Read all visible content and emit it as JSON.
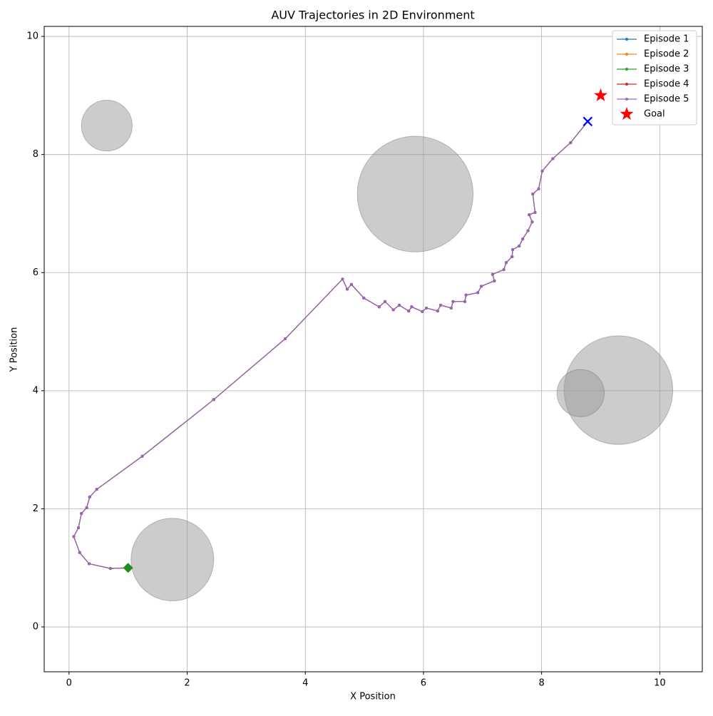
{
  "chart_data": {
    "type": "trajectory",
    "title": "AUV Trajectories in 2D Environment",
    "x_label": "X Position",
    "y_label": "Y Position",
    "xlim": [
      -0.42,
      10.72
    ],
    "ylim": [
      -0.76,
      10.17
    ],
    "xticks": [
      0,
      2,
      4,
      6,
      8,
      10
    ],
    "yticks": [
      0,
      2,
      4,
      6,
      8,
      10
    ],
    "grid": true,
    "legend": "upper right",
    "obstacles": [
      {
        "x": 0.64,
        "y": 8.49,
        "radius": 0.43
      },
      {
        "x": 5.86,
        "y": 7.33,
        "radius": 0.98
      },
      {
        "x": 9.3,
        "y": 4.01,
        "radius": 0.92
      },
      {
        "x": 8.66,
        "y": 3.96,
        "radius": 0.4
      },
      {
        "x": 1.75,
        "y": 1.14,
        "radius": 0.7
      }
    ],
    "obstacle_color": "#999999",
    "series": [
      {
        "name": "Episode 1",
        "color": "#1f77b4",
        "x": [
          1.0,
          0.7,
          0.34,
          0.18,
          0.08,
          0.16,
          0.21,
          0.3,
          0.35,
          0.47,
          1.24,
          2.45,
          3.66,
          4.63,
          4.71,
          4.78,
          4.99,
          5.25,
          5.35,
          5.49,
          5.59,
          5.75,
          5.8,
          5.98,
          6.05,
          6.24,
          6.29,
          6.47,
          6.5,
          6.7,
          6.72,
          6.92,
          6.98,
          7.2,
          7.17,
          7.36,
          7.4,
          7.5,
          7.51,
          7.62,
          7.68,
          7.77,
          7.84,
          7.79,
          7.89,
          7.85,
          7.95,
          8.01,
          8.19,
          8.49,
          8.78
        ],
        "y": [
          1.0,
          0.99,
          1.07,
          1.26,
          1.53,
          1.68,
          1.92,
          2.02,
          2.2,
          2.33,
          2.89,
          3.85,
          4.88,
          5.89,
          5.72,
          5.8,
          5.57,
          5.42,
          5.51,
          5.37,
          5.45,
          5.35,
          5.42,
          5.34,
          5.4,
          5.35,
          5.45,
          5.4,
          5.51,
          5.51,
          5.62,
          5.66,
          5.77,
          5.86,
          5.97,
          6.05,
          6.17,
          6.27,
          6.39,
          6.45,
          6.57,
          6.71,
          6.86,
          6.98,
          7.02,
          7.33,
          7.42,
          7.72,
          7.93,
          8.2,
          8.56
        ]
      },
      {
        "name": "Episode 2",
        "color": "#ff7f0e",
        "x": [
          1.0,
          0.7,
          0.34,
          0.18,
          0.08,
          0.16,
          0.21,
          0.3,
          0.35,
          0.47,
          1.24,
          2.45,
          3.66,
          4.63,
          4.71,
          4.78,
          4.99,
          5.25,
          5.35,
          5.49,
          5.59,
          5.75,
          5.8,
          5.98,
          6.05,
          6.24,
          6.29,
          6.47,
          6.5,
          6.7,
          6.72,
          6.92,
          6.98,
          7.2,
          7.17,
          7.36,
          7.4,
          7.5,
          7.51,
          7.62,
          7.68,
          7.77,
          7.84,
          7.79,
          7.89,
          7.85,
          7.95,
          8.01,
          8.19,
          8.49,
          8.78
        ],
        "y": [
          1.0,
          0.99,
          1.07,
          1.26,
          1.53,
          1.68,
          1.92,
          2.02,
          2.2,
          2.33,
          2.89,
          3.85,
          4.88,
          5.89,
          5.72,
          5.8,
          5.57,
          5.42,
          5.51,
          5.37,
          5.45,
          5.35,
          5.42,
          5.34,
          5.4,
          5.35,
          5.45,
          5.4,
          5.51,
          5.51,
          5.62,
          5.66,
          5.77,
          5.86,
          5.97,
          6.05,
          6.17,
          6.27,
          6.39,
          6.45,
          6.57,
          6.71,
          6.86,
          6.98,
          7.02,
          7.33,
          7.42,
          7.72,
          7.93,
          8.2,
          8.56
        ]
      },
      {
        "name": "Episode 3",
        "color": "#2ca02c",
        "x": [
          1.0,
          0.7,
          0.34,
          0.18,
          0.08,
          0.16,
          0.21,
          0.3,
          0.35,
          0.47,
          1.24,
          2.45,
          3.66,
          4.63,
          4.71,
          4.78,
          4.99,
          5.25,
          5.35,
          5.49,
          5.59,
          5.75,
          5.8,
          5.98,
          6.05,
          6.24,
          6.29,
          6.47,
          6.5,
          6.7,
          6.72,
          6.92,
          6.98,
          7.2,
          7.17,
          7.36,
          7.4,
          7.5,
          7.51,
          7.62,
          7.68,
          7.77,
          7.84,
          7.79,
          7.89,
          7.85,
          7.95,
          8.01,
          8.19,
          8.49,
          8.78
        ],
        "y": [
          1.0,
          0.99,
          1.07,
          1.26,
          1.53,
          1.68,
          1.92,
          2.02,
          2.2,
          2.33,
          2.89,
          3.85,
          4.88,
          5.89,
          5.72,
          5.8,
          5.57,
          5.42,
          5.51,
          5.37,
          5.45,
          5.35,
          5.42,
          5.34,
          5.4,
          5.35,
          5.45,
          5.4,
          5.51,
          5.51,
          5.62,
          5.66,
          5.77,
          5.86,
          5.97,
          6.05,
          6.17,
          6.27,
          6.39,
          6.45,
          6.57,
          6.71,
          6.86,
          6.98,
          7.02,
          7.33,
          7.42,
          7.72,
          7.93,
          8.2,
          8.56
        ]
      },
      {
        "name": "Episode 4",
        "color": "#d62728",
        "x": [
          1.0,
          0.7,
          0.34,
          0.18,
          0.08,
          0.16,
          0.21,
          0.3,
          0.35,
          0.47,
          1.24,
          2.45,
          3.66,
          4.63,
          4.71,
          4.78,
          4.99,
          5.25,
          5.35,
          5.49,
          5.59,
          5.75,
          5.8,
          5.98,
          6.05,
          6.24,
          6.29,
          6.47,
          6.5,
          6.7,
          6.72,
          6.92,
          6.98,
          7.2,
          7.17,
          7.36,
          7.4,
          7.5,
          7.51,
          7.62,
          7.68,
          7.77,
          7.84,
          7.79,
          7.89,
          7.85,
          7.95,
          8.01,
          8.19,
          8.49,
          8.78
        ],
        "y": [
          1.0,
          0.99,
          1.07,
          1.26,
          1.53,
          1.68,
          1.92,
          2.02,
          2.2,
          2.33,
          2.89,
          3.85,
          4.88,
          5.89,
          5.72,
          5.8,
          5.57,
          5.42,
          5.51,
          5.37,
          5.45,
          5.35,
          5.42,
          5.34,
          5.4,
          5.35,
          5.45,
          5.4,
          5.51,
          5.51,
          5.62,
          5.66,
          5.77,
          5.86,
          5.97,
          6.05,
          6.17,
          6.27,
          6.39,
          6.45,
          6.57,
          6.71,
          6.86,
          6.98,
          7.02,
          7.33,
          7.42,
          7.72,
          7.93,
          8.2,
          8.56
        ]
      },
      {
        "name": "Episode 5",
        "color": "#9467bd",
        "x": [
          1.0,
          0.7,
          0.34,
          0.18,
          0.08,
          0.16,
          0.21,
          0.3,
          0.35,
          0.47,
          1.24,
          2.45,
          3.66,
          4.63,
          4.71,
          4.78,
          4.99,
          5.25,
          5.35,
          5.49,
          5.59,
          5.75,
          5.8,
          5.98,
          6.05,
          6.24,
          6.29,
          6.47,
          6.5,
          6.7,
          6.72,
          6.92,
          6.98,
          7.2,
          7.17,
          7.36,
          7.4,
          7.5,
          7.51,
          7.62,
          7.68,
          7.77,
          7.84,
          7.79,
          7.89,
          7.85,
          7.95,
          8.01,
          8.19,
          8.49,
          8.78
        ],
        "y": [
          1.0,
          0.99,
          1.07,
          1.26,
          1.53,
          1.68,
          1.92,
          2.02,
          2.2,
          2.33,
          2.89,
          3.85,
          4.88,
          5.89,
          5.72,
          5.8,
          5.57,
          5.42,
          5.51,
          5.37,
          5.45,
          5.35,
          5.42,
          5.34,
          5.4,
          5.35,
          5.45,
          5.4,
          5.51,
          5.51,
          5.62,
          5.66,
          5.77,
          5.86,
          5.97,
          6.05,
          6.17,
          6.27,
          6.39,
          6.45,
          6.57,
          6.71,
          6.86,
          6.98,
          7.02,
          7.33,
          7.42,
          7.72,
          7.93,
          8.2,
          8.56
        ]
      }
    ],
    "start_marker": {
      "x": 1.0,
      "y": 1.0,
      "color": "#228b22"
    },
    "end_marker": {
      "x": 8.78,
      "y": 8.56,
      "color": "#0000ff"
    },
    "goal": {
      "name": "Goal",
      "x": 9.0,
      "y": 9.0,
      "color": "#ff0000"
    }
  }
}
